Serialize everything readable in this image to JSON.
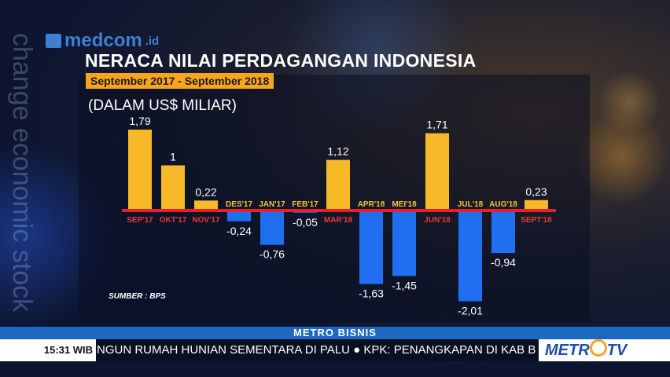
{
  "watermark": "change economic stock",
  "brand": {
    "name": "medcom",
    "suffix": ".id"
  },
  "chart_data": {
    "type": "bar",
    "title": "NERACA NILAI PERDAGANGAN INDONESIA",
    "subtitle": "September 2017 - September 2018",
    "ylabel": "(DALAM US$ MILIAR)",
    "source": "SUMBER : BPS",
    "categories": [
      "SEP'17",
      "OKT'17",
      "NOV'17",
      "DES'17",
      "JAN'17",
      "FEB'17",
      "MAR'18",
      "APR'18",
      "MEI'18",
      "JUN'18",
      "JUL'18",
      "AUG'18",
      "SEPT'18"
    ],
    "values": [
      1.79,
      1,
      0.22,
      -0.24,
      -0.76,
      -0.05,
      1.12,
      -1.63,
      -1.45,
      1.71,
      -2.01,
      -0.94,
      0.23
    ],
    "value_labels": [
      "1,79",
      "1",
      "0,22",
      "-0,24",
      "-0,76",
      "-0,05",
      "1,12",
      "-1,63",
      "-1,45",
      "1,71",
      "-2,01",
      "-0,94",
      "0,23"
    ],
    "colors": {
      "positive": "#f7b928",
      "negative": "#1f6ff0",
      "baseline": "#e8202a",
      "label_positive": "#e8383a",
      "label_negative": "#f7c23a"
    }
  },
  "ticker": {
    "program": "METRO BISNIS",
    "time": "15:31 WIB",
    "headline": "NGUN RUMAH HUNIAN SEMENTARA DI PALU  ●  KPK: PENANGKAPAN DI KAB B",
    "channel_logo": "METRO TV"
  }
}
